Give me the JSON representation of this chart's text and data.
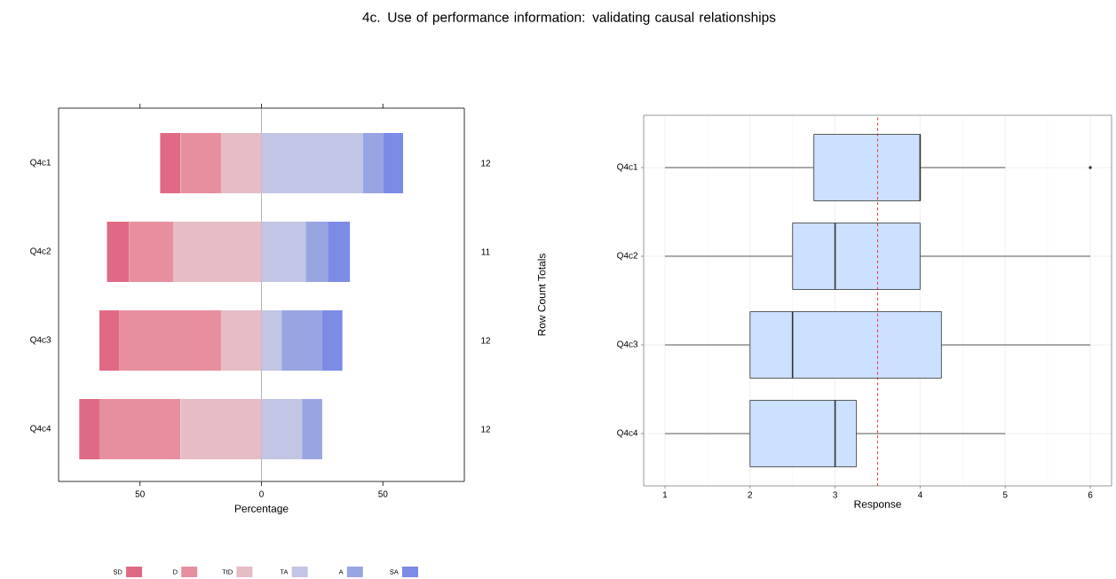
{
  "chart_data": [
    {
      "type": "bar",
      "orientation": "horizontal",
      "title": "4c. Use of performance information: validating causal relationships",
      "xlabel": "Percentage",
      "y2label": "Row Count Totals",
      "categories": [
        "Q4c1",
        "Q4c2",
        "Q4c3",
        "Q4c4"
      ],
      "series": [
        {
          "name": "SD",
          "color": "#e06a85",
          "values": [
            8.3,
            9.1,
            8.3,
            8.3
          ],
          "base": [
            -41.7,
            -63.6,
            -66.7,
            -75
          ]
        },
        {
          "name": "D",
          "color": "#e78f9f",
          "values": [
            16.7,
            18.2,
            41.7,
            33.3
          ],
          "base": [
            -33.3,
            -54.5,
            -58.3,
            -66.7
          ]
        },
        {
          "name": "TtD",
          "color": "#e6bcc5",
          "values": [
            16.7,
            36.4,
            16.7,
            33.3
          ],
          "base": [
            -16.7,
            -36.4,
            -16.7,
            -33.3
          ]
        },
        {
          "name": "TA",
          "color": "#c2c5e3",
          "values": [
            41.7,
            18.2,
            8.3,
            16.7
          ],
          "base": [
            0,
            0,
            0,
            0
          ]
        },
        {
          "name": "A",
          "color": "#98a5e2",
          "values": [
            8.3,
            9.1,
            16.7,
            8.3
          ],
          "base": [
            41.7,
            18.2,
            8.3,
            16.7
          ]
        },
        {
          "name": "SA",
          "color": "#7b8be6",
          "values": [
            8.3,
            9.1,
            8.3,
            null
          ],
          "base": [
            50,
            27.3,
            25,
            null
          ]
        }
      ],
      "xlim": [
        -83.5,
        83.5
      ],
      "xticks": [
        {
          "value": -50,
          "label": "50"
        },
        0,
        50
      ],
      "ref_lines": [
        {
          "axis": "x",
          "value": 0,
          "color": "#a0a0a0"
        }
      ],
      "annotations": [
        "12",
        "11",
        "12",
        "12"
      ],
      "legend": "bottom"
    },
    {
      "type": "box",
      "orientation": "horizontal",
      "xlabel": "Response",
      "categories": [
        "Q4c1",
        "Q4c2",
        "Q4c3",
        "Q4c4"
      ],
      "color": "#cce0ff",
      "boxes": [
        {
          "low": 1,
          "q1": 2.75,
          "median": 4,
          "q3": 4,
          "high": 5,
          "outliers": [
            6
          ]
        },
        {
          "low": 1,
          "q1": 2.5,
          "median": 3,
          "q3": 4,
          "high": 6
        },
        {
          "low": 1,
          "q1": 2,
          "median": 2.5,
          "q3": 4.25,
          "high": 6
        },
        {
          "low": 1,
          "q1": 2,
          "median": 3,
          "q3": 3.25,
          "high": 5
        }
      ],
      "xlim": [
        0.75,
        6.25
      ],
      "xticks": [
        1,
        2,
        3,
        4,
        5,
        6
      ],
      "ref_lines": [
        {
          "axis": "x",
          "value": 3.5,
          "color": "#ff0000",
          "line_style": "dashed"
        }
      ],
      "grid": true
    }
  ]
}
